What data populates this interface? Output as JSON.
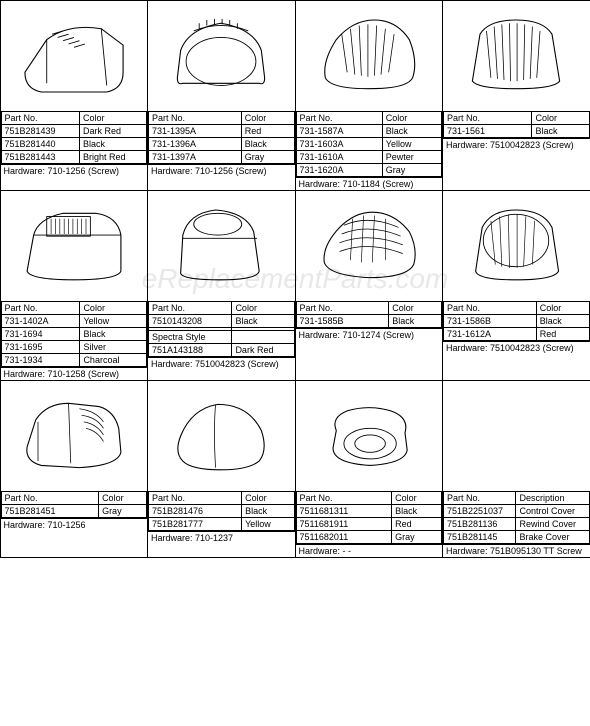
{
  "watermark": "eReplacementParts.com",
  "headers": {
    "partNo": "Part No.",
    "color": "Color",
    "description": "Description"
  },
  "hardwareLabel": "Hardware:",
  "cells": [
    {
      "parts": [
        "751B281439",
        "751B281440",
        "751B281443"
      ],
      "colors": [
        "Dark Red",
        "Black",
        "Bright Red"
      ],
      "hardware": "710-1256 (Screw)",
      "svg": "cover1"
    },
    {
      "parts": [
        "731-1395A",
        "731-1396A",
        "731-1397A"
      ],
      "colors": [
        "Red",
        "Black",
        "Gray"
      ],
      "hardware": "710-1256 (Screw)",
      "svg": "cover2"
    },
    {
      "parts": [
        "731-1587A",
        "731-1603A",
        "731-1610A",
        "731-1620A"
      ],
      "colors": [
        "Black",
        "Yellow",
        "Pewter",
        "Gray"
      ],
      "hardware": "710-1184 (Screw)",
      "svg": "cover3"
    },
    {
      "parts": [
        "731-1561"
      ],
      "colors": [
        "Black"
      ],
      "hardware": "7510042823 (Screw)",
      "svg": "cover4"
    },
    {
      "parts": [
        "731-1402A",
        "731-1694",
        "731-1695",
        "731-1934"
      ],
      "colors": [
        "Yellow",
        "Black",
        "Silver",
        "Charcoal"
      ],
      "hardware": "710-1258 (Screw)",
      "svg": "cover5"
    },
    {
      "parts": [
        "7510143208",
        "",
        "Spectra Style",
        "751A143188"
      ],
      "colors": [
        "Black",
        "",
        "",
        "Dark Red"
      ],
      "hardware": "7510042823 (Screw)",
      "svg": "cover6"
    },
    {
      "parts": [
        "731-1585B"
      ],
      "colors": [
        "Black"
      ],
      "hardware": "710-1274 (Screw)",
      "svg": "cover7"
    },
    {
      "parts": [
        "731-1586B",
        "731-1612A"
      ],
      "colors": [
        "Black",
        "Red"
      ],
      "hardware": "7510042823 (Screw)",
      "svg": "cover8"
    },
    {
      "parts": [
        "751B281451"
      ],
      "colors": [
        "Gray"
      ],
      "hardware": "710-1256",
      "svg": "cover9"
    },
    {
      "parts": [
        "751B281476",
        "751B281777"
      ],
      "colors": [
        "Black",
        "Yellow"
      ],
      "hardware": "710-1237",
      "svg": "cover10"
    },
    {
      "parts": [
        "7511681311",
        "7511681911",
        "7511682011"
      ],
      "colors": [
        "Black",
        "Red",
        "Gray"
      ],
      "hardware": "- -",
      "svg": "cover11"
    },
    {
      "parts": [
        "751B2251037",
        "751B281136",
        "751B281145"
      ],
      "colors": [],
      "descriptions": [
        "Control Cover",
        "Rewind Cover",
        "Brake Cover"
      ],
      "hardware": "751B095130    TT Screw",
      "svg": "none"
    }
  ]
}
